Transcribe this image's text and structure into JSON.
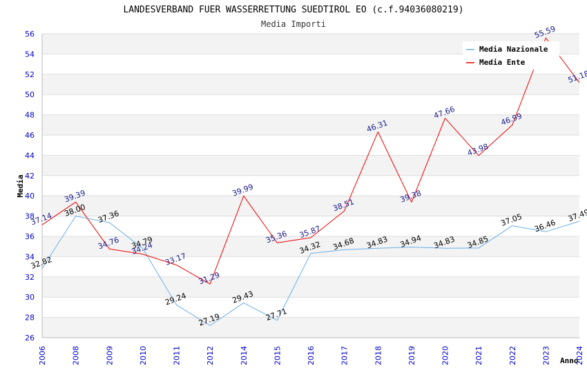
{
  "chart_data": {
    "type": "line",
    "title": "LANDESVERBAND FUER WASSERRETTUNG SUEDTIROL EO (c.f.94036080219)",
    "subtitle": "Media Importi",
    "xlabel": "Anno",
    "ylabel": "Media",
    "ylim": [
      26,
      56
    ],
    "yticks": [
      26,
      28,
      30,
      32,
      34,
      36,
      38,
      40,
      42,
      44,
      46,
      48,
      50,
      52,
      54,
      56
    ],
    "categories": [
      "2006",
      "2008",
      "2009",
      "2010",
      "2011",
      "2012",
      "2014",
      "2015",
      "2016",
      "2017",
      "2018",
      "2019",
      "2020",
      "2021",
      "2022",
      "2023",
      "2024"
    ],
    "grid": "horizontal, alternating bands",
    "legend_position": "top-right",
    "series": [
      {
        "name": "Media Nazionale",
        "color": "#6aaee8",
        "label_color": "#000000",
        "values": [
          32.82,
          38.0,
          37.36,
          34.79,
          29.24,
          27.19,
          29.43,
          27.71,
          34.32,
          34.68,
          34.83,
          34.94,
          34.83,
          34.85,
          37.05,
          36.46,
          37.49
        ],
        "labels": [
          "32.82",
          "38.00",
          "37.36",
          "34.79",
          "29.24",
          "27.19",
          "29.43",
          "27.71",
          "34.32",
          "34.68",
          "34.83",
          "34.94",
          "34.83",
          "34.85",
          "37.05",
          "36.46",
          "37.49"
        ]
      },
      {
        "name": "Media Ente",
        "color": "#ee0000",
        "label_color": "#1a1a8c",
        "values": [
          37.14,
          39.39,
          34.76,
          34.24,
          33.17,
          31.29,
          39.99,
          35.36,
          35.87,
          38.51,
          46.31,
          39.38,
          47.66,
          43.98,
          46.99,
          55.59,
          51.18
        ],
        "labels": [
          "37.14",
          "39.39",
          "34.76",
          "34.24",
          "33.17",
          "31.29",
          "39.99",
          "35.36",
          "35.87",
          "38.51",
          "46.31",
          "39.38",
          "47.66",
          "43.98",
          "46.99",
          "55.59",
          "51.18"
        ]
      }
    ]
  }
}
